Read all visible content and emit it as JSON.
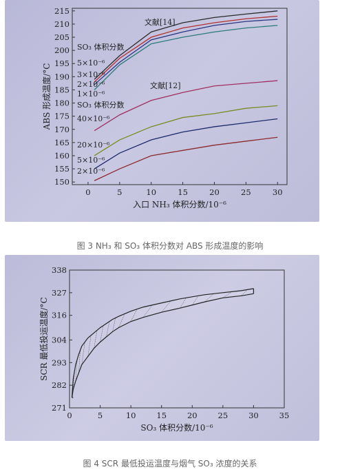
{
  "captions": {
    "fig3": "图 3 NH₃ 和 SO₃ 体积分数对 ABS 形成温度的影响",
    "fig4": "图 4 SCR 最低投运温度与烟气 SO₃ 浓度的关系"
  },
  "chart_data": [
    {
      "type": "line",
      "xlabel": "入口 NH₃ 体积分数/10⁻⁶",
      "ylabel": "ABS 形成温度/°C",
      "xlim": [
        -2.5,
        31.5
      ],
      "ylim": [
        149,
        216
      ],
      "x_ticks": [
        "0",
        "5",
        "10",
        "15",
        "20",
        "25",
        "30"
      ],
      "y_ticks": [
        "150",
        "155",
        "160",
        "165",
        "170",
        "175",
        "180",
        "185",
        "190",
        "195",
        "200",
        "205",
        "210",
        "215"
      ],
      "grid": false,
      "annotations": [
        "文献[14]",
        "SO₃ 体积分数",
        "5×10⁻⁶",
        "3×10⁻⁶",
        "2×10⁻⁶",
        "1×10⁻⁶",
        "文献[12]",
        "SO₃ 体积分数",
        "40×10⁻⁶",
        "20×10⁻⁶",
        "5×10⁻⁶",
        "2×10⁻⁶"
      ],
      "x": [
        1,
        5,
        10,
        15,
        20,
        25,
        30
      ],
      "series": [
        {
          "values": [
            189,
            198,
            207,
            210.5,
            212.5,
            213.8,
            215
          ],
          "color": "#2a2a2a"
        },
        {
          "values": [
            188,
            197,
            205,
            208.5,
            210.5,
            212,
            213
          ],
          "color": "#b03030"
        },
        {
          "values": [
            187,
            195.5,
            204,
            207,
            209.5,
            211,
            211.8
          ],
          "color": "#2a3580"
        },
        {
          "values": [
            185,
            194.5,
            202.5,
            205,
            207,
            208.5,
            209.5
          ],
          "color": "#2a7a7a"
        },
        {
          "values": [
            169.5,
            175.5,
            181,
            184,
            186.5,
            187.5,
            188.5
          ],
          "color": "#a03060"
        },
        {
          "values": [
            160,
            166,
            171,
            174.5,
            176,
            178,
            179
          ],
          "color": "#7a8a20"
        },
        {
          "values": [
            155,
            161,
            166,
            169,
            171,
            172.5,
            174
          ],
          "color": "#1a2a6a"
        },
        {
          "values": [
            150.5,
            155,
            160,
            162,
            164,
            165.5,
            167
          ],
          "color": "#8a2a2a"
        }
      ]
    },
    {
      "type": "area",
      "xlabel": "SO₃ 体积分数/10⁻⁶",
      "ylabel": "SCR 最低投运温度/°C",
      "xlim": [
        0,
        35
      ],
      "ylim": [
        271,
        338
      ],
      "x_ticks": [
        "0",
        "5",
        "10",
        "15",
        "20",
        "25",
        "30",
        "35"
      ],
      "y_ticks": [
        "271",
        "282",
        "293",
        "304",
        "316",
        "327",
        "338"
      ],
      "grid": false,
      "x": [
        0.4,
        0.6,
        1,
        1.5,
        2,
        3,
        4,
        5,
        6,
        7,
        8,
        10,
        12,
        15,
        18,
        20,
        22,
        25,
        28,
        30
      ],
      "series": [
        {
          "values": [
            276,
            285,
            292,
            297,
            301,
            305,
            307.5,
            310,
            312,
            314,
            315.5,
            318,
            320,
            322,
            324,
            325,
            326,
            327,
            328,
            329
          ]
        },
        {
          "values": [
            276,
            280,
            284,
            288,
            292,
            296,
            300,
            303,
            305.5,
            308,
            310,
            313,
            315,
            317.5,
            319.5,
            321,
            322.5,
            324.5,
            325.5,
            326.5
          ]
        }
      ]
    }
  ]
}
